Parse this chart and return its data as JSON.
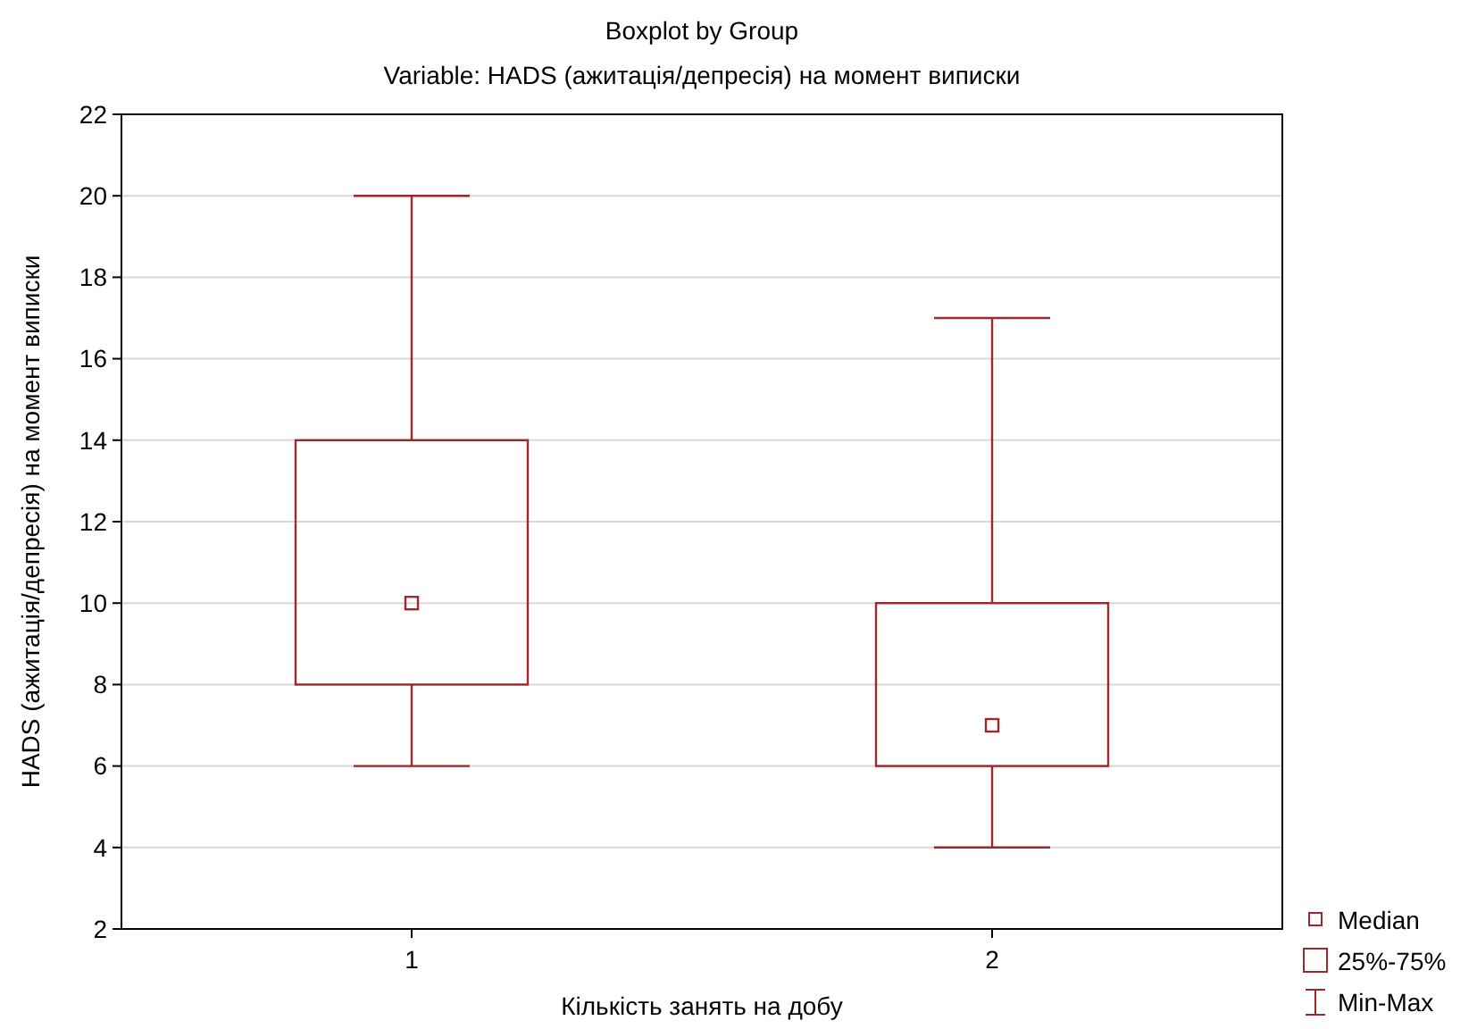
{
  "chart_data": {
    "type": "box",
    "title": "Boxplot by Group",
    "subtitle": "Variable: HADS (ажитація/депресія) на момент виписки",
    "xlabel": "Кількість занять на добу",
    "ylabel": "HADS (ажитація/депресія) на момент виписки",
    "categories": [
      "1",
      "2"
    ],
    "color": "#a0282d",
    "boxes": [
      {
        "low": 6,
        "q1": 8,
        "median": 10,
        "q3": 14,
        "high": 20
      },
      {
        "low": 4,
        "q1": 6,
        "median": 7,
        "q3": 10,
        "high": 17
      }
    ],
    "ylim": [
      2,
      22
    ],
    "yticks": [
      2,
      4,
      6,
      8,
      10,
      12,
      14,
      16,
      18,
      20,
      22
    ],
    "grid": "y",
    "annotations": [
      "Median",
      "25%-75%",
      "Min-Max"
    ]
  }
}
